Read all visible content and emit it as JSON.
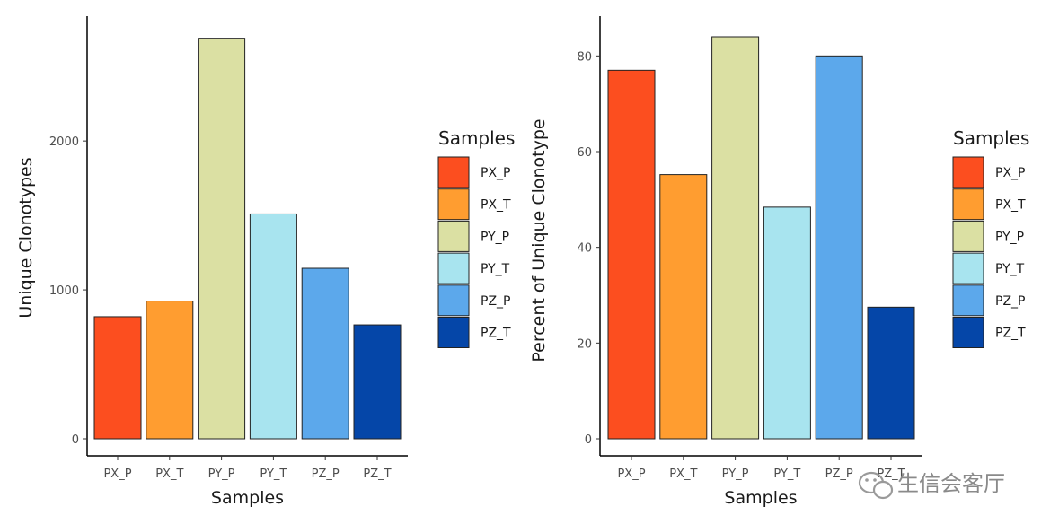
{
  "chart_data": [
    {
      "type": "bar",
      "categories": [
        "PX_P",
        "PX_T",
        "PY_P",
        "PY_T",
        "PZ_P",
        "PZ_T"
      ],
      "values": [
        820,
        925,
        2690,
        1510,
        1145,
        765
      ],
      "colors": [
        "#FC4E1F",
        "#FF9D30",
        "#DBE0A3",
        "#A8E4EF",
        "#5CA8EB",
        "#0546A8"
      ],
      "xlabel": "Samples",
      "ylabel": "Unique Clonotypes",
      "ylim": [
        0,
        2800
      ],
      "yticks": [
        0,
        1000,
        2000
      ],
      "legend": {
        "title": "Samples",
        "entries": [
          "PX_P",
          "PX_T",
          "PY_P",
          "PY_T",
          "PZ_P",
          "PZ_T"
        ],
        "position": "right"
      },
      "grid": false
    },
    {
      "type": "bar",
      "categories": [
        "PX_P",
        "PX_T",
        "PY_P",
        "PY_T",
        "PZ_P",
        "PZ_T"
      ],
      "values": [
        77,
        55.2,
        84,
        48.4,
        80,
        27.5
      ],
      "colors": [
        "#FC4E1F",
        "#FF9D30",
        "#DBE0A3",
        "#A8E4EF",
        "#5CA8EB",
        "#0546A8"
      ],
      "xlabel": "Samples",
      "ylabel": "Percent of Unique Clonotype",
      "ylim": [
        0,
        88
      ],
      "yticks": [
        0,
        20,
        40,
        60,
        80
      ],
      "legend": {
        "title": "Samples",
        "entries": [
          "PX_P",
          "PX_T",
          "PY_P",
          "PY_T",
          "PZ_P",
          "PZ_T"
        ],
        "position": "right"
      },
      "grid": false
    }
  ],
  "watermark": {
    "text": "生信会客厅",
    "icon": "wechat-icon"
  }
}
